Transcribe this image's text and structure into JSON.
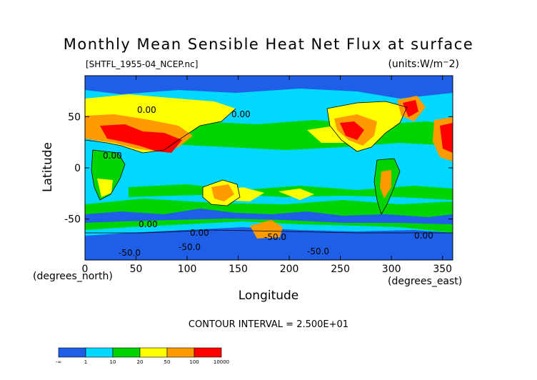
{
  "chart_data": {
    "type": "heatmap",
    "title": "Monthly Mean Sensible Heat Net Flux at surface",
    "dataset": "[SHTFL_1955-04_NCEP.nc]",
    "units": "(units:W/m^2)",
    "xlabel": "Longitude",
    "ylabel": "Latitude",
    "x_unit_label": "(degrees_east)",
    "y_unit_label": "(degrees_north)",
    "xlim": [
      0,
      360
    ],
    "ylim": [
      -90,
      90
    ],
    "x_ticks": [
      0,
      50,
      100,
      150,
      200,
      250,
      300,
      350
    ],
    "y_ticks": [
      50,
      0,
      -50
    ],
    "contour_interval": "CONTOUR INTERVAL = 2.500E+01",
    "contour_labels": [
      "0.00",
      "0.00",
      "0.00",
      "0.00",
      "0.00",
      "0.00",
      "-50.0",
      "-50.0",
      "-50.0",
      "-50.0"
    ],
    "levels": [
      "-∞",
      "1",
      "10",
      "20",
      "50",
      "100",
      "10000"
    ],
    "colors": [
      "#1f5fe8",
      "#00d8ff",
      "#00d400",
      "#ffff00",
      "#ff9a00",
      "#ff0000"
    ]
  }
}
